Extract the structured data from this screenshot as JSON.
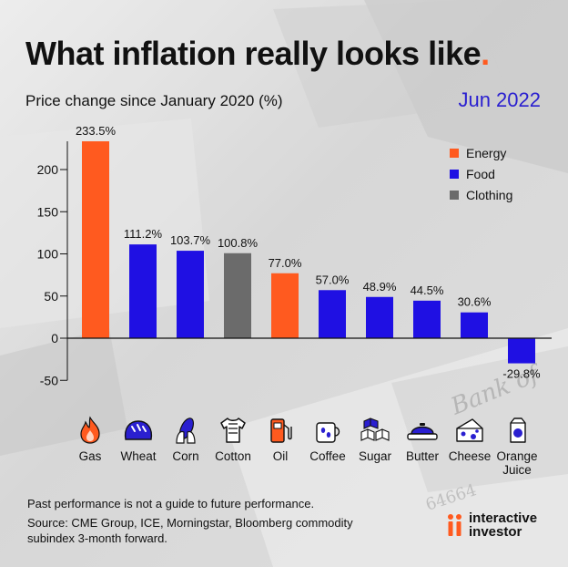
{
  "title": "What inflation really looks like",
  "title_dot": ".",
  "subtitle": "Price change since January 2020 (%)",
  "date": "Jun 2022",
  "colors": {
    "Energy": "#ff5a1f",
    "Food": "#1f10e3",
    "Clothing": "#6b6b6b"
  },
  "legend": [
    {
      "label": "Energy",
      "color": "#ff5a1f"
    },
    {
      "label": "Food",
      "color": "#1f10e3"
    },
    {
      "label": "Clothing",
      "color": "#6b6b6b"
    }
  ],
  "chart_data": {
    "type": "bar",
    "title": "What inflation really looks like",
    "ylabel": "Price change since January 2020 (%)",
    "ylim": [
      -50,
      233.5
    ],
    "yticks": [
      -50,
      0,
      50,
      100,
      150,
      200
    ],
    "categories": [
      "Gas",
      "Wheat",
      "Corn",
      "Cotton",
      "Oil",
      "Coffee",
      "Sugar",
      "Butter",
      "Cheese",
      "Orange Juice"
    ],
    "values": [
      233.5,
      111.2,
      103.7,
      100.8,
      77.0,
      57.0,
      48.9,
      44.5,
      30.6,
      -29.8
    ],
    "value_labels": [
      "233.5%",
      "111.2%",
      "103.7%",
      "100.8%",
      "77.0%",
      "57.0%",
      "48.9%",
      "44.5%",
      "30.6%",
      "-29.8%"
    ],
    "groups": [
      "Energy",
      "Food",
      "Food",
      "Clothing",
      "Energy",
      "Food",
      "Food",
      "Food",
      "Food",
      "Food"
    ],
    "legend": [
      "Energy",
      "Food",
      "Clothing"
    ]
  },
  "icons": [
    {
      "name": "flame-icon",
      "label": "Gas"
    },
    {
      "name": "bread-icon",
      "label": "Wheat"
    },
    {
      "name": "corn-icon",
      "label": "Corn"
    },
    {
      "name": "tshirt-icon",
      "label": "Cotton"
    },
    {
      "name": "fuel-pump-icon",
      "label": "Oil"
    },
    {
      "name": "coffee-mug-icon",
      "label": "Coffee"
    },
    {
      "name": "sugar-cubes-icon",
      "label": "Sugar"
    },
    {
      "name": "butter-dish-icon",
      "label": "Butter"
    },
    {
      "name": "cheese-icon",
      "label": "Cheese"
    },
    {
      "name": "juice-carton-icon",
      "label": "Orange Juice"
    }
  ],
  "footer": {
    "disclaimer": "Past performance is not a guide to future performance.",
    "source": "Source: CME Group, ICE, Morningstar, Bloomberg commodity subindex 3-month forward."
  },
  "logo": {
    "line1": "interactive",
    "line2": "investor"
  }
}
